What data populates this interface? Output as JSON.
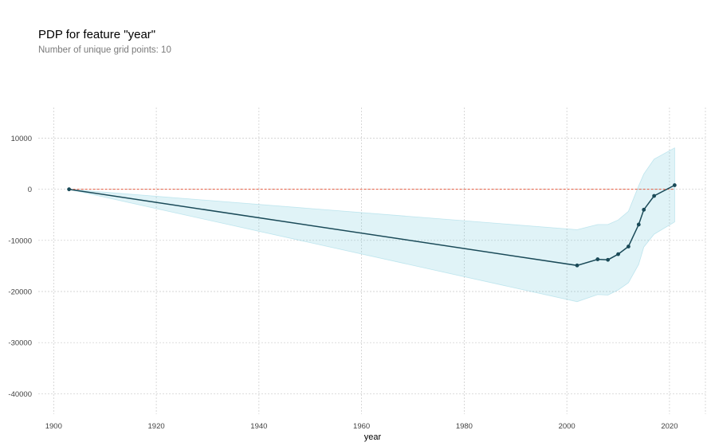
{
  "chart_data": {
    "type": "line",
    "title": "PDP for feature \"year\"",
    "subtitle": "Number of unique grid points: 10",
    "xlabel": "year",
    "ylabel": "",
    "xlim": [
      1897,
      2027
    ],
    "ylim": [
      -44000,
      16000
    ],
    "xticks": [
      1900,
      1920,
      1940,
      1960,
      1980,
      2000,
      2020
    ],
    "yticks": [
      10000,
      0,
      -10000,
      -20000,
      -30000,
      -40000
    ],
    "grid": true,
    "reference_line_y": 0,
    "series": [
      {
        "x": [
          1903,
          2002,
          2006,
          2008,
          2010,
          2012,
          2014,
          2015,
          2017,
          2021
        ],
        "values": [
          0,
          -14900,
          -13700,
          -13800,
          -12700,
          -11200,
          -6900,
          -4000,
          -1300,
          800
        ],
        "band_upper": [
          0,
          -7900,
          -6900,
          -6900,
          -6000,
          -4300,
          700,
          3000,
          5900,
          8100
        ],
        "band_lower": [
          0,
          -22000,
          -20600,
          -20700,
          -19700,
          -18300,
          -14700,
          -11300,
          -8800,
          -6400
        ]
      }
    ],
    "colors": {
      "line": "#1a4a58",
      "marker": "#1a4a58",
      "band": "#66c2d7",
      "reference": "#e3583d",
      "grid": "#c8c8c8"
    }
  }
}
